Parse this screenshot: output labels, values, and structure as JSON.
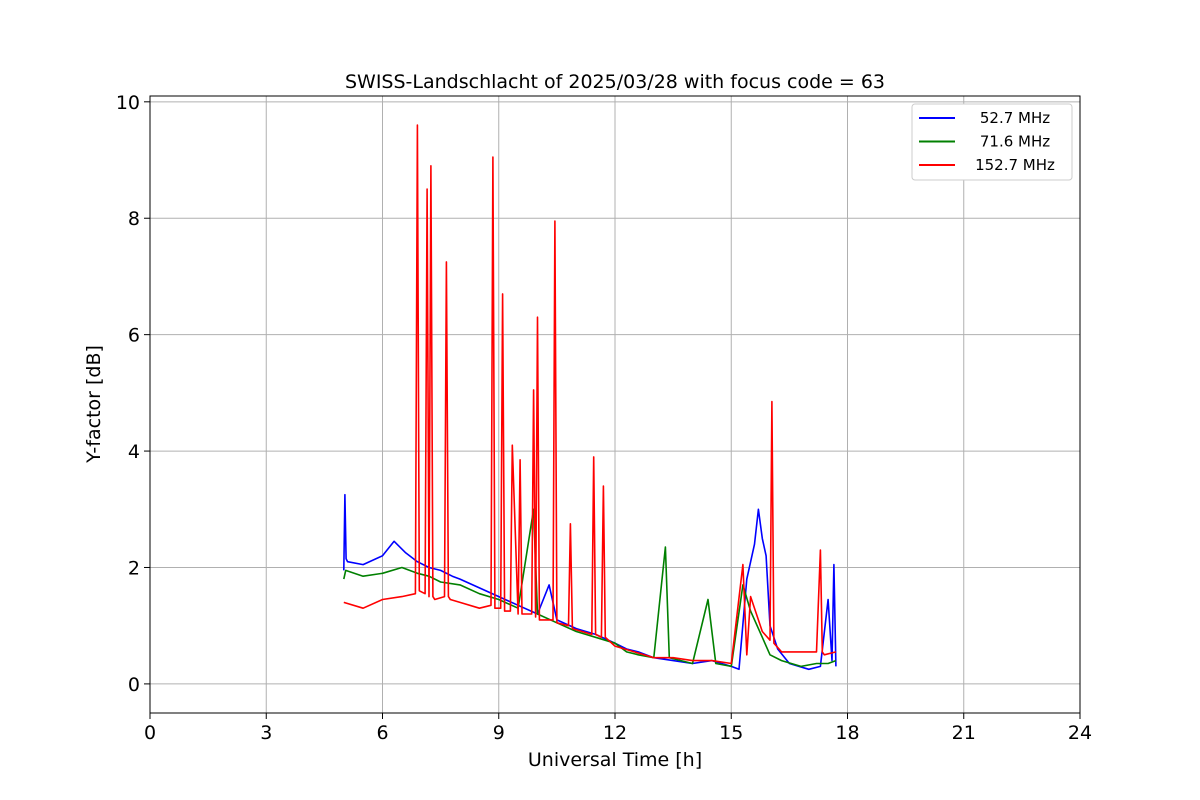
{
  "chart_data": {
    "type": "line",
    "title": "SWISS-Landschlacht of 2025/03/28 with focus code = 63",
    "xlabel": "Universal Time [h]",
    "ylabel": "Y-factor [dB]",
    "xlim": [
      0,
      24
    ],
    "ylim": [
      -0.5,
      10.1
    ],
    "xticks": [
      0,
      3,
      6,
      9,
      12,
      15,
      18,
      21,
      24
    ],
    "yticks": [
      0,
      2,
      4,
      6,
      8,
      10
    ],
    "grid": true,
    "legend_position": "top-right",
    "series": [
      {
        "name": "52.7 MHz",
        "color": "#0000ff",
        "x": [
          5.0,
          5.03,
          5.06,
          5.1,
          5.5,
          6.0,
          6.3,
          6.6,
          6.9,
          7.2,
          7.5,
          7.8,
          8.0,
          8.5,
          9.0,
          9.5,
          10.0,
          10.3,
          10.5,
          11.0,
          11.5,
          12.0,
          12.3,
          12.6,
          13.0,
          13.5,
          14.0,
          14.5,
          15.0,
          15.2,
          15.4,
          15.6,
          15.7,
          15.8,
          15.9,
          16.0,
          16.2,
          16.5,
          17.0,
          17.3,
          17.5,
          17.6,
          17.65,
          17.7
        ],
        "y": [
          1.95,
          3.25,
          2.15,
          2.1,
          2.05,
          2.2,
          2.45,
          2.25,
          2.1,
          2.0,
          1.95,
          1.85,
          1.8,
          1.65,
          1.5,
          1.35,
          1.2,
          1.7,
          1.1,
          0.95,
          0.85,
          0.7,
          0.6,
          0.55,
          0.45,
          0.4,
          0.35,
          0.4,
          0.3,
          0.25,
          1.8,
          2.4,
          3.0,
          2.5,
          2.2,
          1.0,
          0.6,
          0.35,
          0.25,
          0.3,
          1.45,
          0.4,
          2.05,
          0.3
        ]
      },
      {
        "name": "71.6 MHz",
        "color": "#008000",
        "x": [
          5.0,
          5.05,
          5.5,
          6.0,
          6.5,
          6.9,
          7.2,
          7.5,
          8.0,
          8.5,
          9.0,
          9.5,
          9.9,
          10.0,
          10.5,
          11.0,
          11.5,
          12.0,
          12.3,
          12.6,
          13.0,
          13.3,
          13.4,
          13.7,
          14.0,
          14.4,
          14.6,
          15.0,
          15.3,
          15.5,
          15.8,
          16.0,
          16.3,
          16.8,
          17.2,
          17.5,
          17.7
        ],
        "y": [
          1.8,
          1.95,
          1.85,
          1.9,
          2.0,
          1.9,
          1.85,
          1.75,
          1.7,
          1.55,
          1.45,
          1.3,
          3.0,
          1.2,
          1.05,
          0.9,
          0.8,
          0.7,
          0.55,
          0.5,
          0.45,
          2.35,
          0.45,
          0.4,
          0.35,
          1.45,
          0.35,
          0.3,
          1.7,
          1.25,
          0.8,
          0.5,
          0.4,
          0.3,
          0.35,
          0.35,
          0.4
        ]
      },
      {
        "name": "152.7 MHz",
        "color": "#ff0000",
        "x": [
          5.0,
          5.5,
          6.0,
          6.5,
          6.85,
          6.9,
          6.95,
          7.1,
          7.15,
          7.2,
          7.25,
          7.3,
          7.35,
          7.6,
          7.65,
          7.7,
          7.75,
          8.0,
          8.5,
          8.8,
          8.85,
          8.9,
          9.05,
          9.1,
          9.15,
          9.3,
          9.35,
          9.5,
          9.55,
          9.6,
          9.85,
          9.9,
          9.95,
          10.0,
          10.05,
          10.4,
          10.45,
          10.5,
          10.8,
          10.85,
          10.9,
          11.4,
          11.45,
          11.5,
          11.65,
          11.7,
          11.75,
          12.0,
          12.5,
          13.0,
          13.5,
          14.0,
          14.5,
          15.0,
          15.3,
          15.4,
          15.5,
          15.8,
          16.0,
          16.05,
          16.1,
          16.3,
          16.8,
          17.2,
          17.3,
          17.35,
          17.4,
          17.7
        ],
        "y": [
          1.4,
          1.3,
          1.45,
          1.5,
          1.55,
          9.6,
          1.6,
          1.55,
          8.5,
          1.5,
          8.9,
          1.5,
          1.45,
          1.5,
          7.25,
          1.5,
          1.45,
          1.4,
          1.3,
          1.35,
          9.05,
          1.3,
          1.3,
          6.7,
          1.25,
          1.25,
          4.1,
          1.2,
          3.85,
          1.2,
          1.2,
          5.05,
          1.15,
          6.3,
          1.1,
          1.1,
          7.95,
          1.05,
          1.0,
          2.75,
          0.95,
          0.85,
          3.9,
          0.85,
          0.8,
          3.4,
          0.8,
          0.65,
          0.55,
          0.45,
          0.45,
          0.4,
          0.4,
          0.35,
          2.05,
          0.5,
          1.5,
          0.9,
          0.75,
          4.85,
          0.7,
          0.55,
          0.55,
          0.55,
          2.3,
          0.55,
          0.5,
          0.55
        ]
      }
    ]
  }
}
